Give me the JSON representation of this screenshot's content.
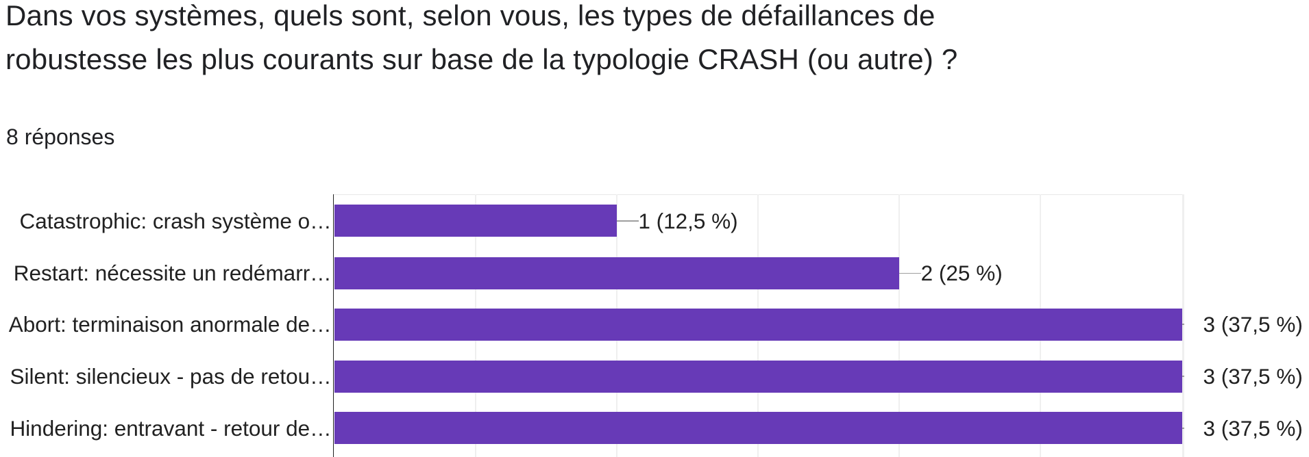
{
  "question": {
    "title": "Dans vos systèmes, quels sont, selon vous, les types de défaillances de robustesse les plus courants sur base de la typologie CRASH (ou autre) ?",
    "response_count_label": "8 réponses"
  },
  "chart_data": {
    "type": "bar",
    "orientation": "horizontal",
    "categories": [
      "Catastrophic: crash système o…",
      "Restart: nécessite un redémarr…",
      "Abort: terminaison anormale de…",
      "Silent: silencieux - pas de retou…",
      "Hindering: entravant - retour de…"
    ],
    "values": [
      1,
      2,
      3,
      3,
      3
    ],
    "annotations": [
      "1 (12,5 %)",
      "2 (25 %)",
      "3 (37,5 %)",
      "3 (37,5 %)",
      "3 (37,5 %)"
    ],
    "xlim": [
      0,
      3
    ],
    "gridline_step": 0.5,
    "grid": true,
    "legend_position": "none",
    "colors": {
      "bar": "#673ab7",
      "axis": "#212121",
      "gridline": "#efefef",
      "plot_border": "#e8e8e8",
      "leader": "#9e9e9e",
      "text": "#212121"
    }
  }
}
